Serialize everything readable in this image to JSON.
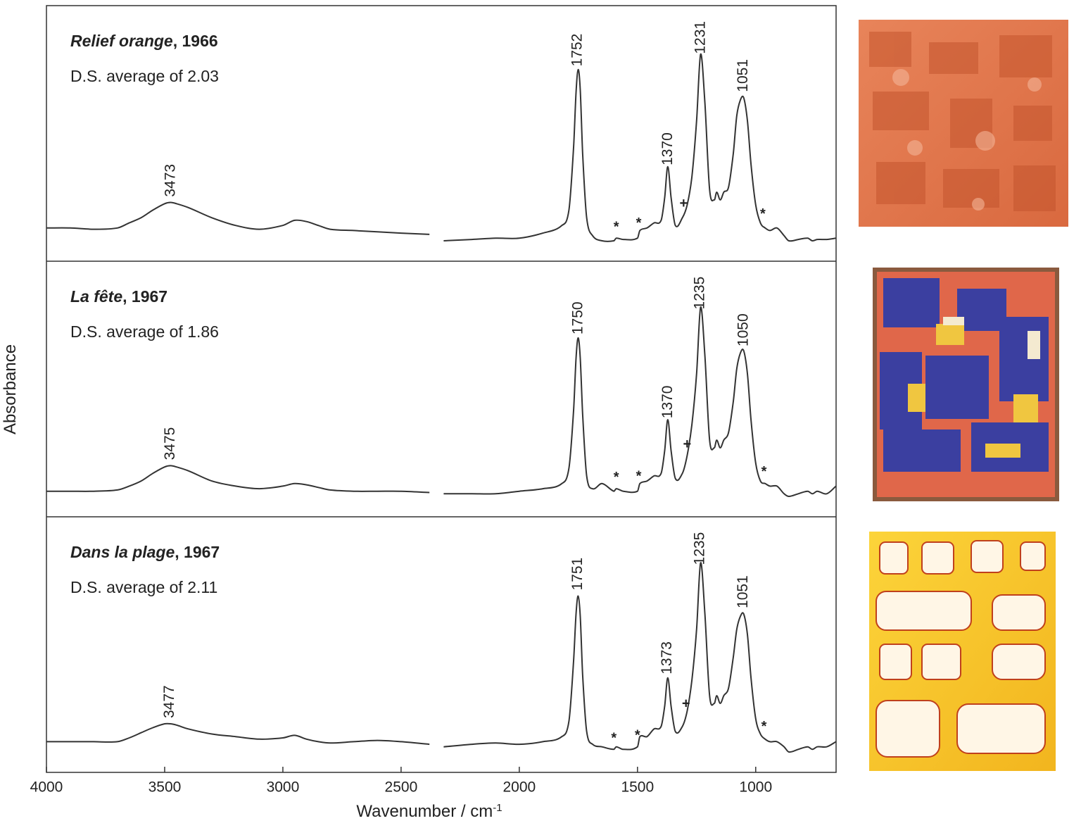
{
  "chart_data": [
    {
      "type": "line",
      "title_italic": "Relief orange",
      "title_rest": ", 1966",
      "subtitle": "D.S. average of 2.03",
      "color": "#333333",
      "xlim": [
        4000,
        660
      ],
      "ylim": [
        0,
        1
      ],
      "x": [
        4000,
        3900,
        3800,
        3700,
        3650,
        3600,
        3550,
        3500,
        3475,
        3450,
        3400,
        3300,
        3200,
        3100,
        3000,
        2950,
        2900,
        2850,
        2800,
        2700,
        2600,
        2500,
        2380,
        2350,
        2320,
        2200,
        2100,
        2000,
        1900,
        1820,
        1790,
        1770,
        1760,
        1751,
        1742,
        1732,
        1715,
        1690,
        1650,
        1600,
        1590,
        1560,
        1500,
        1490,
        1460,
        1430,
        1400,
        1385,
        1372,
        1358,
        1340,
        1310,
        1290,
        1270,
        1250,
        1233,
        1215,
        1195,
        1175,
        1165,
        1150,
        1135,
        1115,
        1095,
        1080,
        1065,
        1051,
        1035,
        1020,
        1000,
        980,
        960,
        940,
        910,
        880,
        860,
        820,
        780,
        760,
        740,
        700,
        660
      ],
      "values": [
        0.13,
        0.13,
        0.125,
        0.13,
        0.15,
        0.17,
        0.2,
        0.225,
        0.23,
        0.225,
        0.21,
        0.17,
        0.14,
        0.125,
        0.14,
        0.16,
        0.155,
        0.14,
        0.125,
        0.12,
        0.115,
        0.11,
        0.105,
        null,
        0.08,
        0.085,
        0.09,
        0.09,
        0.11,
        0.14,
        0.2,
        0.45,
        0.66,
        0.75,
        0.67,
        0.42,
        0.17,
        0.1,
        0.08,
        0.08,
        0.09,
        0.085,
        0.09,
        0.12,
        0.13,
        0.15,
        0.16,
        0.25,
        0.37,
        0.25,
        0.14,
        0.17,
        0.22,
        0.33,
        0.55,
        0.81,
        0.62,
        0.28,
        0.24,
        0.27,
        0.24,
        0.27,
        0.29,
        0.42,
        0.57,
        0.63,
        0.64,
        0.55,
        0.38,
        0.22,
        0.15,
        0.13,
        0.12,
        0.13,
        0.1,
        0.08,
        0.085,
        0.09,
        0.08,
        0.085,
        0.085,
        0.09
      ],
      "peaks": [
        3473,
        1752,
        1370,
        1231,
        1051
      ],
      "markers": [
        {
          "x": 1590,
          "label": "*"
        },
        {
          "x": 1495,
          "label": "*"
        },
        {
          "x": 1305,
          "label": "+"
        },
        {
          "x": 970,
          "label": "*"
        }
      ]
    },
    {
      "type": "line",
      "title_italic": "La fête",
      "title_rest": ", 1967",
      "subtitle": "D.S. average of 1.86",
      "color": "#333333",
      "xlim": [
        4000,
        660
      ],
      "ylim": [
        0,
        1
      ],
      "x": [
        4000,
        3900,
        3800,
        3700,
        3650,
        3600,
        3550,
        3500,
        3475,
        3450,
        3400,
        3300,
        3200,
        3100,
        3000,
        2950,
        2900,
        2850,
        2800,
        2700,
        2600,
        2500,
        2380,
        2350,
        2320,
        2200,
        2100,
        2000,
        1900,
        1820,
        1790,
        1770,
        1760,
        1751,
        1742,
        1732,
        1715,
        1690,
        1650,
        1600,
        1590,
        1560,
        1500,
        1490,
        1460,
        1430,
        1400,
        1385,
        1372,
        1358,
        1340,
        1310,
        1290,
        1270,
        1250,
        1233,
        1215,
        1195,
        1175,
        1165,
        1150,
        1135,
        1115,
        1095,
        1080,
        1065,
        1051,
        1035,
        1020,
        1000,
        980,
        960,
        940,
        910,
        880,
        860,
        820,
        780,
        760,
        740,
        700,
        660
      ],
      "values": [
        0.1,
        0.1,
        0.1,
        0.105,
        0.12,
        0.14,
        0.17,
        0.195,
        0.2,
        0.195,
        0.18,
        0.14,
        0.12,
        0.11,
        0.12,
        0.13,
        0.125,
        0.115,
        0.105,
        0.1,
        0.1,
        0.1,
        0.095,
        null,
        0.09,
        0.09,
        0.09,
        0.1,
        0.11,
        0.13,
        0.19,
        0.42,
        0.62,
        0.7,
        0.62,
        0.4,
        0.16,
        0.11,
        0.13,
        0.1,
        0.11,
        0.1,
        0.1,
        0.13,
        0.14,
        0.16,
        0.17,
        0.26,
        0.38,
        0.26,
        0.15,
        0.17,
        0.24,
        0.36,
        0.56,
        0.82,
        0.63,
        0.3,
        0.27,
        0.3,
        0.27,
        0.3,
        0.33,
        0.45,
        0.58,
        0.64,
        0.65,
        0.56,
        0.38,
        0.21,
        0.14,
        0.13,
        0.12,
        0.12,
        0.09,
        0.08,
        0.09,
        0.1,
        0.09,
        0.1,
        0.09,
        0.12
      ],
      "peaks": [
        3475,
        1750,
        1370,
        1235,
        1050
      ],
      "markers": [
        {
          "x": 1590,
          "label": "*"
        },
        {
          "x": 1495,
          "label": "*"
        },
        {
          "x": 1290,
          "label": "+"
        },
        {
          "x": 965,
          "label": "*"
        }
      ]
    },
    {
      "type": "line",
      "title_italic": "Dans la plage",
      "title_rest": ", 1967",
      "subtitle": "D.S. average of 2.11",
      "color": "#333333",
      "xlim": [
        4000,
        660
      ],
      "ylim": [
        0,
        1
      ],
      "xticks": [
        4000,
        3500,
        3000,
        2500,
        2000,
        1500,
        1000
      ],
      "x": [
        4000,
        3900,
        3800,
        3700,
        3650,
        3600,
        3550,
        3500,
        3475,
        3450,
        3400,
        3300,
        3200,
        3100,
        3000,
        2950,
        2900,
        2850,
        2800,
        2700,
        2600,
        2500,
        2380,
        2350,
        2320,
        2200,
        2100,
        2000,
        1900,
        1820,
        1790,
        1770,
        1760,
        1751,
        1742,
        1732,
        1715,
        1690,
        1650,
        1600,
        1590,
        1560,
        1500,
        1490,
        1460,
        1430,
        1400,
        1385,
        1372,
        1358,
        1340,
        1310,
        1290,
        1270,
        1250,
        1233,
        1215,
        1195,
        1175,
        1165,
        1150,
        1135,
        1115,
        1095,
        1080,
        1065,
        1051,
        1035,
        1020,
        1000,
        980,
        960,
        940,
        910,
        880,
        860,
        820,
        780,
        760,
        740,
        700,
        660
      ],
      "values": [
        0.12,
        0.12,
        0.12,
        0.12,
        0.135,
        0.155,
        0.175,
        0.19,
        0.19,
        0.185,
        0.17,
        0.15,
        0.14,
        0.13,
        0.135,
        0.145,
        0.13,
        0.12,
        0.115,
        0.12,
        0.125,
        0.12,
        0.11,
        null,
        0.1,
        0.11,
        0.115,
        0.11,
        0.12,
        0.14,
        0.2,
        0.44,
        0.62,
        0.69,
        0.61,
        0.38,
        0.16,
        0.11,
        0.1,
        0.09,
        0.1,
        0.09,
        0.1,
        0.14,
        0.14,
        0.17,
        0.18,
        0.26,
        0.37,
        0.26,
        0.16,
        0.18,
        0.24,
        0.36,
        0.56,
        0.82,
        0.62,
        0.3,
        0.27,
        0.3,
        0.27,
        0.3,
        0.33,
        0.45,
        0.56,
        0.61,
        0.62,
        0.54,
        0.37,
        0.21,
        0.15,
        0.13,
        0.12,
        0.12,
        0.1,
        0.08,
        0.09,
        0.1,
        0.09,
        0.1,
        0.1,
        0.12
      ],
      "peaks": [
        3477,
        1751,
        1373,
        1235,
        1051
      ],
      "markers": [
        {
          "x": 1600,
          "label": "*"
        },
        {
          "x": 1500,
          "label": "*"
        },
        {
          "x": 1295,
          "label": "+"
        },
        {
          "x": 965,
          "label": "*"
        }
      ]
    }
  ],
  "x_label": "Wavenumber / cm",
  "x_label_sup": "-1",
  "y_label": "Absorbance"
}
